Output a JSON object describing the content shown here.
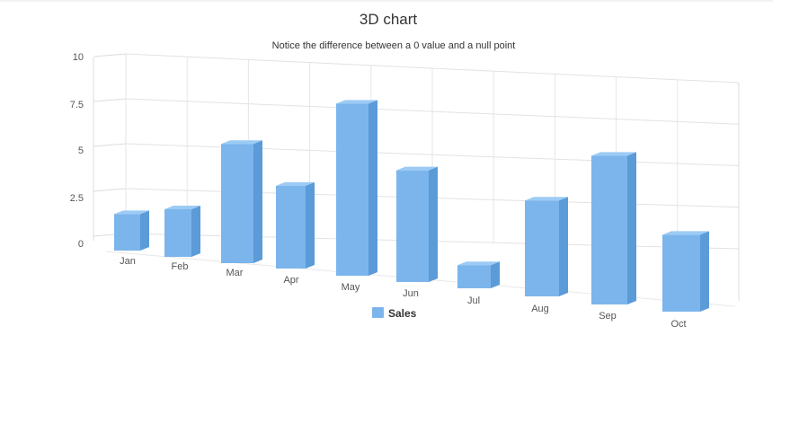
{
  "chart_data": {
    "type": "bar",
    "title": "3D chart",
    "subtitle": "Notice the difference between a 0 value and a null point",
    "categories": [
      "Jan",
      "Feb",
      "Mar",
      "Apr",
      "May",
      "Jun",
      "Jul",
      "Aug",
      "Sep",
      "Oct"
    ],
    "series": [
      {
        "name": "Sales",
        "values": [
          2,
          2.5,
          6,
          4,
          8,
          5,
          1,
          4,
          6,
          3
        ],
        "color": "#7cb5ec"
      }
    ],
    "y_ticks": [
      "0",
      "2.5",
      "5",
      "7.5",
      "10"
    ],
    "ylim": [
      0,
      10
    ],
    "legend_position": "bottom-center",
    "grid": true,
    "three_d": true
  }
}
